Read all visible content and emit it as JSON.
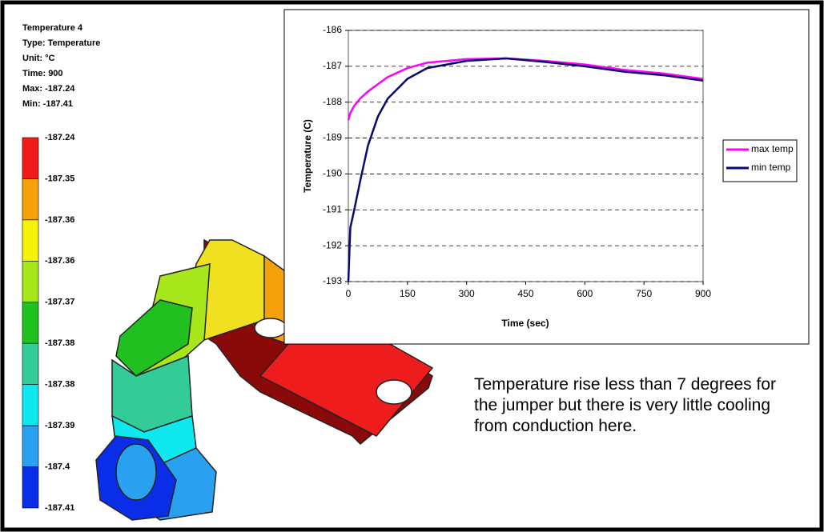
{
  "fea_legend": {
    "lines": [
      "Temperature 4",
      "Type: Temperature",
      "Unit: °C",
      "Time: 900",
      "Max: -187.24",
      "Min: -187.41"
    ],
    "levels": [
      "-187.24",
      "-187.35",
      "-187.36",
      "-187.36",
      "-187.37",
      "-187.38",
      "-187.38",
      "-187.39",
      "-187.4",
      "-187.41"
    ],
    "band_colors": [
      "#ee1c1c",
      "#f5a20a",
      "#f7f20a",
      "#a6e61b",
      "#20c020",
      "#33cc99",
      "#10e8f0",
      "#2aa0f0",
      "#0a2ee8"
    ]
  },
  "chart_data": {
    "type": "line",
    "x_label": "Time (sec)",
    "y_label": "Temperature (C)",
    "x": [
      0,
      5,
      15,
      30,
      50,
      75,
      100,
      150,
      200,
      300,
      400,
      500,
      600,
      700,
      800,
      900
    ],
    "series": [
      {
        "name": "max temp",
        "color": "#ff00ff",
        "values": [
          -188.5,
          -188.3,
          -188.1,
          -187.9,
          -187.7,
          -187.5,
          -187.3,
          -187.05,
          -186.9,
          -186.8,
          -186.78,
          -186.85,
          -186.95,
          -187.1,
          -187.2,
          -187.35
        ]
      },
      {
        "name": "min temp",
        "color": "#0a0a6e",
        "values": [
          -193,
          -191.5,
          -191,
          -190.2,
          -189.2,
          -188.4,
          -187.9,
          -187.35,
          -187.05,
          -186.85,
          -186.78,
          -186.88,
          -187.0,
          -187.15,
          -187.25,
          -187.4
        ]
      }
    ],
    "xlim": [
      0,
      900
    ],
    "xticks": [
      0,
      150,
      300,
      450,
      600,
      750,
      900
    ],
    "ylim": [
      -193,
      -186
    ],
    "yticks": [
      -193,
      -192,
      -191,
      -190,
      -189,
      -188,
      -187,
      -186
    ],
    "grid": true
  },
  "caption": "Temperature rise less than 7 degrees for the jumper but there is very little cooling from conduction here."
}
